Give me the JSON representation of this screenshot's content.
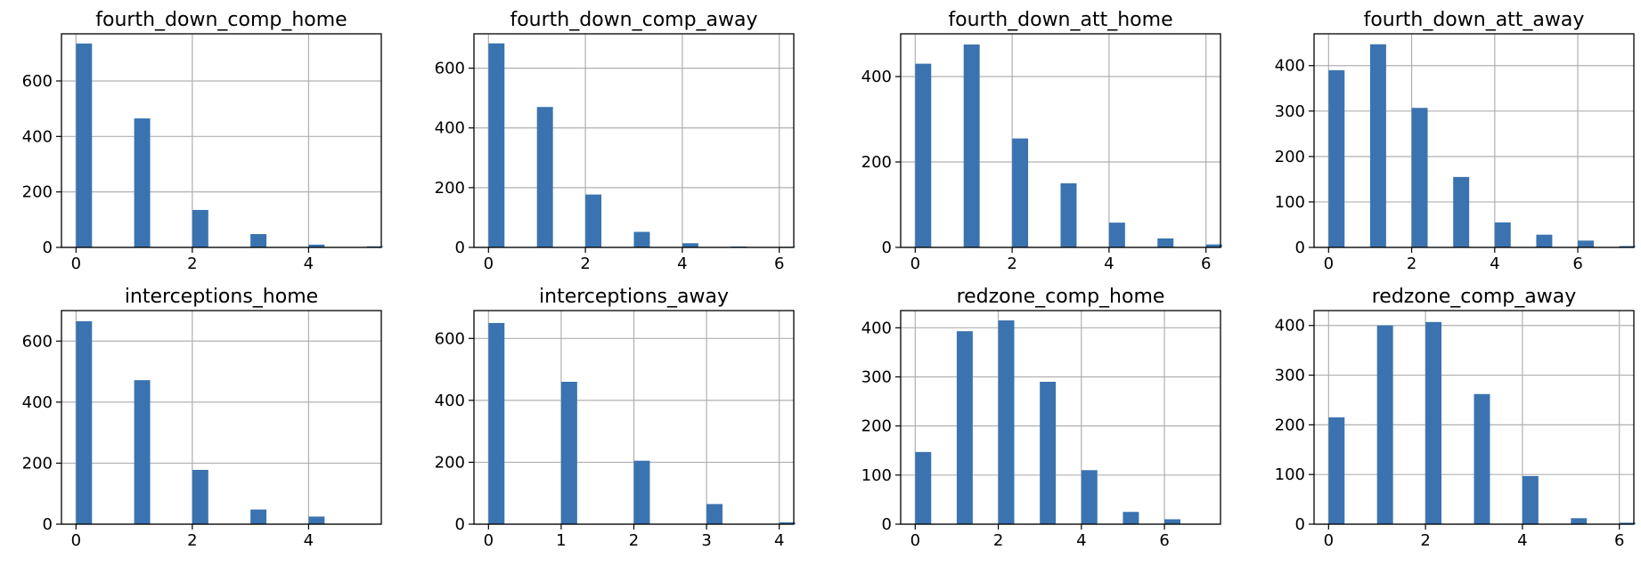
{
  "bar_color": "#3a73b0",
  "grid_color": "#b0b0b0",
  "chart_data": [
    {
      "type": "bar",
      "title": "fourth_down_comp_home",
      "xlim": [
        -0.25,
        5.25
      ],
      "ylim": [
        0,
        770
      ],
      "xticks": [
        0,
        2,
        4
      ],
      "yticks": [
        0,
        200,
        400,
        600
      ],
      "bars": [
        {
          "x": 0,
          "value": 735
        },
        {
          "x": 1,
          "value": 465
        },
        {
          "x": 2,
          "value": 135
        },
        {
          "x": 3,
          "value": 48
        },
        {
          "x": 4,
          "value": 10
        },
        {
          "x": 5,
          "value": 4
        }
      ]
    },
    {
      "type": "bar",
      "title": "fourth_down_comp_away",
      "xlim": [
        -0.3,
        6.3
      ],
      "ylim": [
        0,
        715
      ],
      "xticks": [
        0,
        2,
        4,
        6
      ],
      "yticks": [
        0,
        200,
        400,
        600
      ],
      "bars": [
        {
          "x": 0,
          "value": 683
        },
        {
          "x": 1,
          "value": 470
        },
        {
          "x": 2,
          "value": 177
        },
        {
          "x": 3,
          "value": 52
        },
        {
          "x": 4,
          "value": 14
        },
        {
          "x": 5,
          "value": 3
        },
        {
          "x": 6,
          "value": 2
        }
      ]
    },
    {
      "type": "bar",
      "title": "fourth_down_att_home",
      "xlim": [
        -0.3,
        6.3
      ],
      "ylim": [
        0,
        500
      ],
      "xticks": [
        0,
        2,
        4,
        6
      ],
      "yticks": [
        0,
        200,
        400
      ],
      "bars": [
        {
          "x": 0,
          "value": 430
        },
        {
          "x": 1,
          "value": 475
        },
        {
          "x": 2,
          "value": 255
        },
        {
          "x": 3,
          "value": 150
        },
        {
          "x": 4,
          "value": 58
        },
        {
          "x": 5,
          "value": 21
        },
        {
          "x": 6,
          "value": 7
        }
      ]
    },
    {
      "type": "bar",
      "title": "fourth_down_att_away",
      "xlim": [
        -0.35,
        7.35
      ],
      "ylim": [
        0,
        470
      ],
      "xticks": [
        0,
        2,
        4,
        6
      ],
      "yticks": [
        0,
        100,
        200,
        300,
        400
      ],
      "bars": [
        {
          "x": 0,
          "value": 390
        },
        {
          "x": 1,
          "value": 447
        },
        {
          "x": 2,
          "value": 307
        },
        {
          "x": 3,
          "value": 155
        },
        {
          "x": 4,
          "value": 55
        },
        {
          "x": 5,
          "value": 28
        },
        {
          "x": 6,
          "value": 15
        },
        {
          "x": 7,
          "value": 3
        }
      ]
    },
    {
      "type": "bar",
      "title": "interceptions_home",
      "xlim": [
        -0.25,
        5.25
      ],
      "ylim": [
        0,
        700
      ],
      "xticks": [
        0,
        2,
        4
      ],
      "yticks": [
        0,
        200,
        400,
        600
      ],
      "bars": [
        {
          "x": 0,
          "value": 665
        },
        {
          "x": 1,
          "value": 472
        },
        {
          "x": 2,
          "value": 178
        },
        {
          "x": 3,
          "value": 48
        },
        {
          "x": 4,
          "value": 25
        }
      ]
    },
    {
      "type": "bar",
      "title": "interceptions_away",
      "xlim": [
        -0.2,
        4.2
      ],
      "ylim": [
        0,
        690
      ],
      "xticks": [
        0,
        1,
        2,
        3,
        4
      ],
      "yticks": [
        0,
        200,
        400,
        600
      ],
      "bars": [
        {
          "x": 0,
          "value": 650
        },
        {
          "x": 1,
          "value": 460
        },
        {
          "x": 2,
          "value": 205
        },
        {
          "x": 3,
          "value": 65
        },
        {
          "x": 4,
          "value": 6
        }
      ]
    },
    {
      "type": "bar",
      "title": "redzone_comp_home",
      "xlim": [
        -0.35,
        7.35
      ],
      "ylim": [
        0,
        435
      ],
      "xticks": [
        0,
        2,
        4,
        6
      ],
      "yticks": [
        0,
        100,
        200,
        300,
        400
      ],
      "bars": [
        {
          "x": 0,
          "value": 147
        },
        {
          "x": 1,
          "value": 393
        },
        {
          "x": 2,
          "value": 415
        },
        {
          "x": 3,
          "value": 290
        },
        {
          "x": 4,
          "value": 110
        },
        {
          "x": 5,
          "value": 25
        },
        {
          "x": 6,
          "value": 10
        }
      ]
    },
    {
      "type": "bar",
      "title": "redzone_comp_away",
      "xlim": [
        -0.3,
        6.3
      ],
      "ylim": [
        0,
        430
      ],
      "xticks": [
        0,
        2,
        4,
        6
      ],
      "yticks": [
        0,
        100,
        200,
        300,
        400
      ],
      "bars": [
        {
          "x": 0,
          "value": 215
        },
        {
          "x": 1,
          "value": 400
        },
        {
          "x": 2,
          "value": 407
        },
        {
          "x": 3,
          "value": 262
        },
        {
          "x": 4,
          "value": 97
        },
        {
          "x": 5,
          "value": 12
        },
        {
          "x": 6,
          "value": 3
        }
      ]
    }
  ]
}
